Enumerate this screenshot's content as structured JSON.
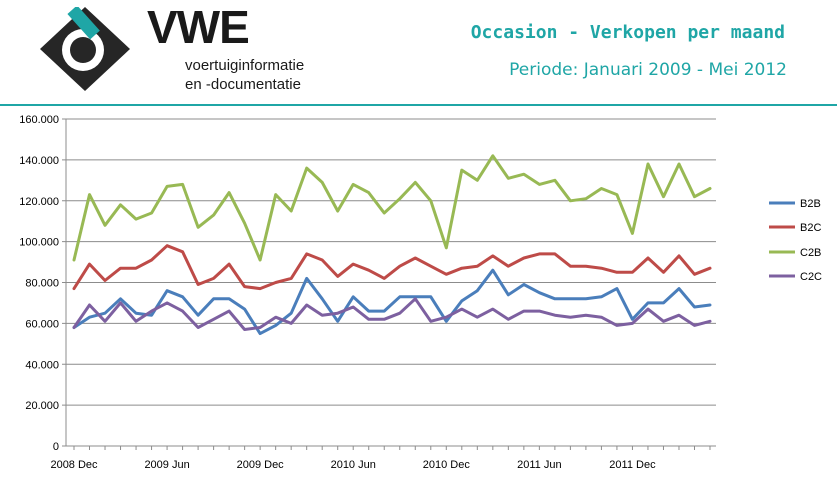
{
  "header": {
    "brand": "VWE",
    "tagline_1": "voertuiginformatie",
    "tagline_2": "en -documentatie",
    "title": "Occasion - Verkopen per maand",
    "subtitle": "Periode: Januari 2009 - Mei 2012"
  },
  "colors": {
    "accent": "#1fa6a6",
    "B2B": "#4a7ebb",
    "B2C": "#be4b48",
    "C2B": "#98b954",
    "C2C": "#7d60a0"
  },
  "chart_data": {
    "type": "line",
    "title": "",
    "xlabel": "",
    "ylabel": "",
    "ylim": [
      0,
      160000
    ],
    "yticks": [
      0,
      20000,
      40000,
      60000,
      80000,
      100000,
      120000,
      140000,
      160000
    ],
    "ytick_labels": [
      "0",
      "20.000",
      "40.000",
      "60.000",
      "80.000",
      "100.000",
      "120.000",
      "140.000",
      "160.000"
    ],
    "x_tick_labels": [
      {
        "label": "2008 Dec",
        "index": 0
      },
      {
        "label": "2009 Jun",
        "index": 6
      },
      {
        "label": "2009 Dec",
        "index": 12
      },
      {
        "label": "2010 Jun",
        "index": 18
      },
      {
        "label": "2010 Dec",
        "index": 24
      },
      {
        "label": "2011 Jun",
        "index": 30
      },
      {
        "label": "2011 Dec",
        "index": 36
      }
    ],
    "grid": "horizontal",
    "legend": "right",
    "series": [
      {
        "name": "B2B",
        "values": [
          58000,
          63000,
          65000,
          72000,
          65000,
          64000,
          76000,
          73000,
          64000,
          72000,
          72000,
          67000,
          55000,
          59000,
          65000,
          82000,
          72000,
          61000,
          73000,
          66000,
          66000,
          73000,
          73000,
          73000,
          61000,
          71000,
          76000,
          86000,
          74000,
          79000,
          75000,
          72000,
          72000,
          72000,
          73000,
          77000,
          62000,
          70000,
          70000,
          77000,
          68000,
          69000
        ]
      },
      {
        "name": "B2C",
        "values": [
          77000,
          89000,
          81000,
          87000,
          87000,
          91000,
          98000,
          95000,
          79000,
          82000,
          89000,
          78000,
          77000,
          80000,
          82000,
          94000,
          91000,
          83000,
          89000,
          86000,
          82000,
          88000,
          92000,
          88000,
          84000,
          87000,
          88000,
          93000,
          88000,
          92000,
          94000,
          94000,
          88000,
          88000,
          87000,
          85000,
          85000,
          92000,
          85000,
          93000,
          84000,
          87000
        ]
      },
      {
        "name": "C2B",
        "values": [
          91000,
          123000,
          108000,
          118000,
          111000,
          114000,
          127000,
          128000,
          107000,
          113000,
          124000,
          109000,
          91000,
          123000,
          115000,
          136000,
          129000,
          115000,
          128000,
          124000,
          114000,
          121000,
          129000,
          120000,
          97000,
          135000,
          130000,
          142000,
          131000,
          133000,
          128000,
          130000,
          120000,
          121000,
          126000,
          123000,
          104000,
          138000,
          122000,
          138000,
          122000,
          126000
        ]
      },
      {
        "name": "C2C",
        "values": [
          58000,
          69000,
          61000,
          70000,
          61000,
          66000,
          70000,
          66000,
          58000,
          62000,
          66000,
          57000,
          58000,
          63000,
          60000,
          69000,
          64000,
          65000,
          68000,
          62000,
          62000,
          65000,
          72000,
          61000,
          63000,
          67000,
          63000,
          67000,
          62000,
          66000,
          66000,
          64000,
          63000,
          64000,
          63000,
          59000,
          60000,
          67000,
          61000,
          64000,
          59000,
          61000
        ]
      }
    ]
  }
}
